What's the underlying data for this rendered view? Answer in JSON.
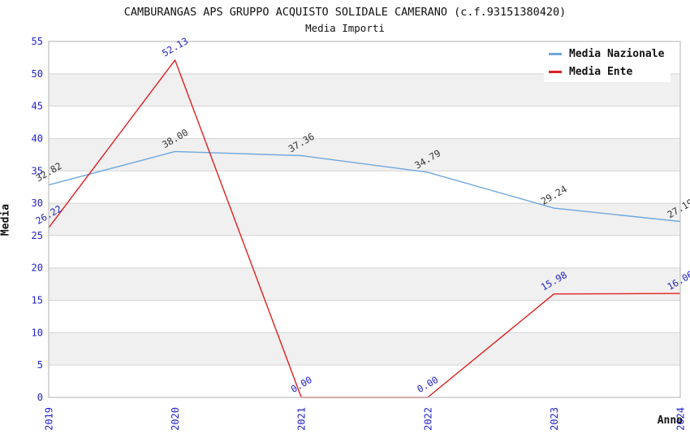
{
  "header": {
    "title": "CAMBURANGAS APS GRUPPO ACQUISTO SOLIDALE CAMERANO (c.f.93151380420)",
    "subtitle": "Media Importi"
  },
  "legend": {
    "items": [
      {
        "label": "Media Nazionale",
        "color": "#6fa8dc"
      },
      {
        "label": "Media Ente",
        "color": "#e02020"
      }
    ]
  },
  "chart_data": {
    "type": "line",
    "title": "CAMBURANGAS APS GRUPPO ACQUISTO SOLIDALE CAMERANO (c.f.93151380420)",
    "subtitle": "Media Importi",
    "xlabel": "Anno",
    "ylabel": "Media",
    "x": [
      2019,
      2020,
      2021,
      2022,
      2023,
      2024
    ],
    "series": [
      {
        "name": "Media Nazionale",
        "values": [
          32.82,
          38.0,
          37.36,
          34.79,
          29.24,
          27.19
        ],
        "color": "#6fa8dc",
        "label_color": "#333333"
      },
      {
        "name": "Media Ente",
        "values": [
          26.22,
          52.13,
          0.0,
          0.0,
          15.98,
          16.06
        ],
        "color": "#e02020",
        "label_color": "#2222cc"
      }
    ],
    "ylim": [
      0,
      55
    ],
    "ytick_step": 5,
    "yticks": [
      0,
      5,
      10,
      15,
      20,
      25,
      30,
      35,
      40,
      45,
      50,
      55
    ],
    "grid": "horizontal gridlines with alternating gray bands",
    "legend_position": "top-right",
    "tick_label_color": "#2222cc",
    "band_color": "#f0f0f0",
    "grid_color": "#d4d4d4",
    "border_color": "#bfbfbf"
  }
}
